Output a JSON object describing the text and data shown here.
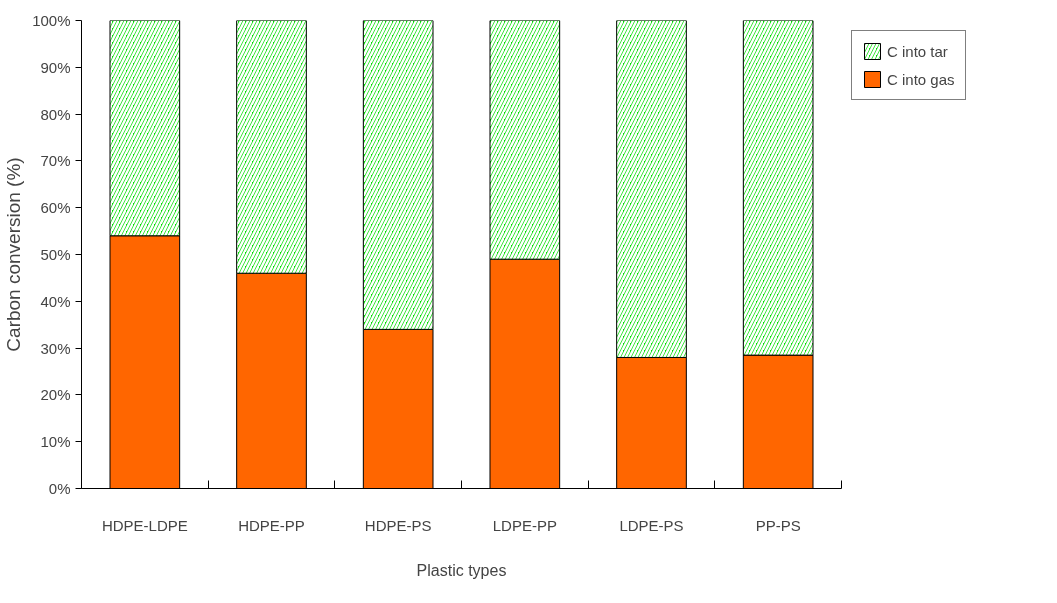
{
  "chart_data": {
    "type": "bar",
    "stacked": true,
    "xlabel": "Plastic types",
    "ylabel": "Carbon conversion (%)",
    "categories": [
      "HDPE-LDPE",
      "HDPE-PP",
      "HDPE-PS",
      "LDPE-PP",
      "LDPE-PS",
      "PP-PS"
    ],
    "series": [
      {
        "name": "C into gas",
        "color": "#ff6600",
        "values": [
          54,
          46,
          34,
          49,
          28,
          28.5
        ]
      },
      {
        "name": "C into tar",
        "color": "#00dd00",
        "values": [
          46,
          54,
          66,
          51,
          72,
          71.5
        ]
      }
    ],
    "ylim": [
      0,
      100
    ],
    "yticks": [
      {
        "value": 0,
        "label": "0%"
      },
      {
        "value": 10,
        "label": "10%"
      },
      {
        "value": 20,
        "label": "20%"
      },
      {
        "value": 30,
        "label": "30%"
      },
      {
        "value": 40,
        "label": "40%"
      },
      {
        "value": 50,
        "label": "50%"
      },
      {
        "value": 60,
        "label": "60%"
      },
      {
        "value": 70,
        "label": "70%"
      },
      {
        "value": 80,
        "label": "80%"
      },
      {
        "value": 90,
        "label": "90%"
      },
      {
        "value": 100,
        "label": "100%"
      }
    ],
    "grid": false,
    "legend": "top right"
  }
}
